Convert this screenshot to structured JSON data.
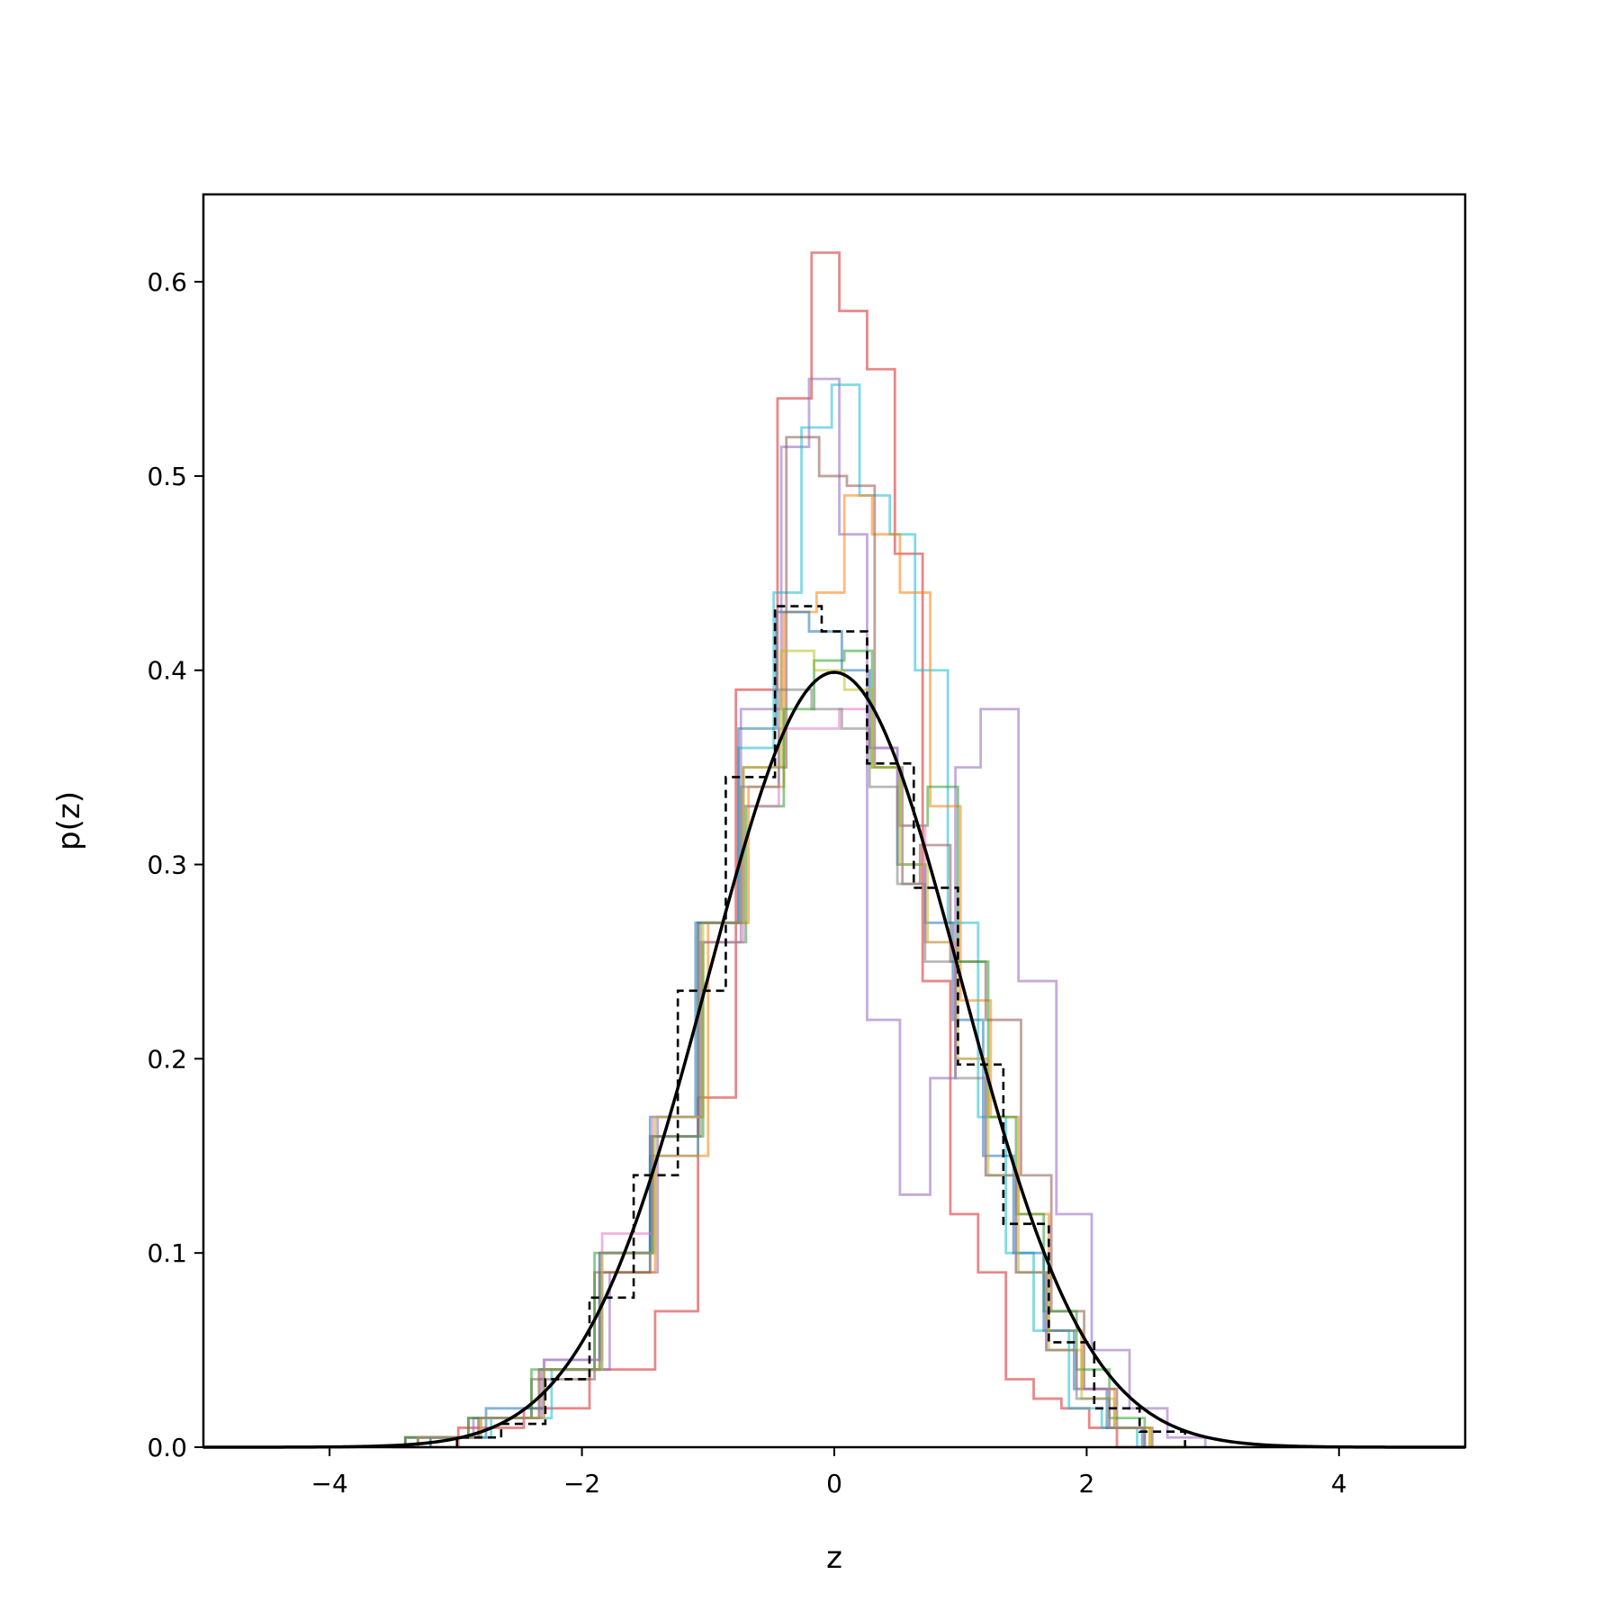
{
  "chart_data": {
    "type": "line",
    "xlabel": "z",
    "ylabel": "p(z)",
    "xlim": [
      -5,
      5
    ],
    "ylim": [
      0,
      0.645
    ],
    "x_ticks": [
      -4,
      -2,
      0,
      2,
      4
    ],
    "x_tick_labels": [
      "−4",
      "−2",
      "0",
      "2",
      "4"
    ],
    "y_ticks": [
      0.0,
      0.1,
      0.2,
      0.3,
      0.4,
      0.5,
      0.6
    ],
    "y_tick_labels": [
      "0.0",
      "0.1",
      "0.2",
      "0.3",
      "0.4",
      "0.5",
      "0.6"
    ],
    "grid": false,
    "legend": "none",
    "histograms": [
      {
        "color": "#d62728",
        "edges": [
          -3.5,
          -2.98,
          -2.46,
          -1.94,
          -1.42,
          -1.08,
          -0.78,
          -0.45,
          -0.18,
          0.04,
          0.26,
          0.48,
          0.7,
          0.92,
          1.14,
          1.36,
          1.58,
          1.8,
          2.02,
          2.24,
          2.46
        ],
        "values": [
          0.0,
          0.01,
          0.02,
          0.04,
          0.07,
          0.18,
          0.39,
          0.54,
          0.615,
          0.585,
          0.555,
          0.46,
          0.24,
          0.12,
          0.09,
          0.035,
          0.025,
          0.02,
          0.01,
          0.0
        ]
      },
      {
        "color": "#9467bd",
        "edges": [
          -3.4,
          -2.86,
          -2.32,
          -1.78,
          -1.4,
          -1.04,
          -0.74,
          -0.42,
          -0.2,
          0.04,
          0.26,
          0.52,
          0.76,
          0.96,
          1.16,
          1.46,
          1.76,
          2.04,
          2.34,
          2.64,
          2.94
        ],
        "values": [
          0.005,
          0.015,
          0.04,
          0.09,
          0.17,
          0.26,
          0.38,
          0.515,
          0.55,
          0.47,
          0.22,
          0.13,
          0.19,
          0.35,
          0.38,
          0.24,
          0.12,
          0.05,
          0.02,
          0.005
        ]
      },
      {
        "color": "#17becf",
        "edges": [
          -3.2,
          -2.72,
          -2.24,
          -1.84,
          -1.46,
          -1.08,
          -0.76,
          -0.48,
          -0.26,
          -0.02,
          0.2,
          0.44,
          0.64,
          0.9,
          1.14,
          1.36,
          1.58,
          1.86,
          2.12,
          2.4,
          2.7
        ],
        "values": [
          0.005,
          0.015,
          0.04,
          0.09,
          0.15,
          0.27,
          0.36,
          0.44,
          0.525,
          0.547,
          0.49,
          0.47,
          0.4,
          0.27,
          0.17,
          0.1,
          0.06,
          0.02,
          0.01,
          0.0
        ]
      },
      {
        "color": "#ff7f0e",
        "edges": [
          -3.3,
          -2.82,
          -2.34,
          -1.86,
          -1.42,
          -1.0,
          -0.68,
          -0.4,
          -0.14,
          0.08,
          0.3,
          0.52,
          0.76,
          1.0,
          1.24,
          1.46,
          1.7,
          1.96,
          2.22,
          2.5,
          2.8
        ],
        "values": [
          0.005,
          0.015,
          0.04,
          0.09,
          0.15,
          0.27,
          0.34,
          0.43,
          0.44,
          0.49,
          0.47,
          0.44,
          0.33,
          0.23,
          0.17,
          0.12,
          0.06,
          0.03,
          0.01,
          0.0
        ]
      },
      {
        "color": "#8c564b",
        "edges": [
          -3.4,
          -2.9,
          -2.4,
          -1.9,
          -1.46,
          -1.08,
          -0.72,
          -0.38,
          -0.12,
          0.1,
          0.32,
          0.54,
          0.68,
          0.92,
          1.2,
          1.48,
          1.72,
          1.98,
          2.24,
          2.52,
          2.8
        ],
        "values": [
          0.005,
          0.015,
          0.035,
          0.09,
          0.16,
          0.27,
          0.35,
          0.52,
          0.5,
          0.495,
          0.35,
          0.29,
          0.31,
          0.25,
          0.22,
          0.14,
          0.07,
          0.03,
          0.01,
          0.0
        ]
      },
      {
        "color": "#2ca02c",
        "edges": [
          -3.4,
          -2.9,
          -2.4,
          -1.9,
          -1.44,
          -1.04,
          -0.7,
          -0.4,
          -0.16,
          0.08,
          0.3,
          0.52,
          0.74,
          0.98,
          1.22,
          1.44,
          1.66,
          1.92,
          2.18,
          2.46,
          2.76
        ],
        "values": [
          0.005,
          0.015,
          0.04,
          0.1,
          0.16,
          0.26,
          0.33,
          0.38,
          0.405,
          0.41,
          0.35,
          0.32,
          0.34,
          0.25,
          0.17,
          0.12,
          0.07,
          0.04,
          0.015,
          0.0
        ]
      },
      {
        "color": "#1f77b4",
        "edges": [
          -3.2,
          -2.76,
          -2.3,
          -1.86,
          -1.46,
          -1.1,
          -0.76,
          -0.46,
          -0.2,
          0.06,
          0.28,
          0.5,
          0.72,
          0.94,
          1.18,
          1.42,
          1.66,
          1.9,
          2.16,
          2.44,
          2.74
        ],
        "values": [
          0.005,
          0.02,
          0.045,
          0.1,
          0.17,
          0.27,
          0.37,
          0.43,
          0.42,
          0.4,
          0.36,
          0.3,
          0.27,
          0.22,
          0.15,
          0.1,
          0.06,
          0.03,
          0.01,
          0.0
        ]
      },
      {
        "color": "#e377c2",
        "edges": [
          -3.3,
          -2.8,
          -2.3,
          -1.84,
          -1.44,
          -1.06,
          -0.72,
          -0.44,
          -0.2,
          0.04,
          0.28,
          0.5,
          0.72,
          0.96,
          1.2,
          1.44,
          1.68,
          1.92,
          2.18,
          2.46,
          2.76
        ],
        "values": [
          0.005,
          0.015,
          0.045,
          0.11,
          0.17,
          0.26,
          0.33,
          0.37,
          0.37,
          0.38,
          0.36,
          0.32,
          0.26,
          0.2,
          0.14,
          0.09,
          0.05,
          0.03,
          0.01,
          0.0
        ]
      },
      {
        "color": "#bcbd22",
        "edges": [
          -3.3,
          -2.8,
          -2.3,
          -1.84,
          -1.42,
          -1.04,
          -0.72,
          -0.42,
          -0.16,
          0.08,
          0.3,
          0.52,
          0.74,
          0.98,
          1.22,
          1.46,
          1.7,
          1.96,
          2.22,
          2.5,
          2.8
        ],
        "values": [
          0.005,
          0.015,
          0.04,
          0.1,
          0.17,
          0.27,
          0.35,
          0.41,
          0.4,
          0.39,
          0.35,
          0.3,
          0.26,
          0.2,
          0.14,
          0.09,
          0.05,
          0.025,
          0.01,
          0.0
        ]
      },
      {
        "color": "#7f7f7f",
        "edges": [
          -3.3,
          -2.82,
          -2.34,
          -1.86,
          -1.44,
          -1.06,
          -0.74,
          -0.44,
          -0.18,
          0.06,
          0.28,
          0.5,
          0.72,
          0.96,
          1.2,
          1.44,
          1.68,
          1.92,
          2.18,
          2.46,
          2.76
        ],
        "values": [
          0.005,
          0.015,
          0.04,
          0.1,
          0.16,
          0.27,
          0.34,
          0.39,
          0.38,
          0.37,
          0.34,
          0.29,
          0.25,
          0.19,
          0.14,
          0.09,
          0.05,
          0.025,
          0.01,
          0.0
        ]
      },
      {
        "color": "#000000",
        "dashed": true,
        "edges": [
          -2.99,
          -2.64,
          -2.29,
          -1.94,
          -1.59,
          -1.24,
          -0.86,
          -0.47,
          -0.1,
          0.26,
          0.63,
          0.98,
          1.34,
          1.7,
          2.06,
          2.42,
          2.78
        ],
        "values": [
          0.005,
          0.012,
          0.035,
          0.077,
          0.14,
          0.235,
          0.345,
          0.433,
          0.42,
          0.352,
          0.288,
          0.197,
          0.115,
          0.054,
          0.02,
          0.008
        ]
      }
    ],
    "curve": {
      "type": "normal-pdf",
      "mean": 0,
      "sd": 1,
      "color": "#000000"
    }
  }
}
